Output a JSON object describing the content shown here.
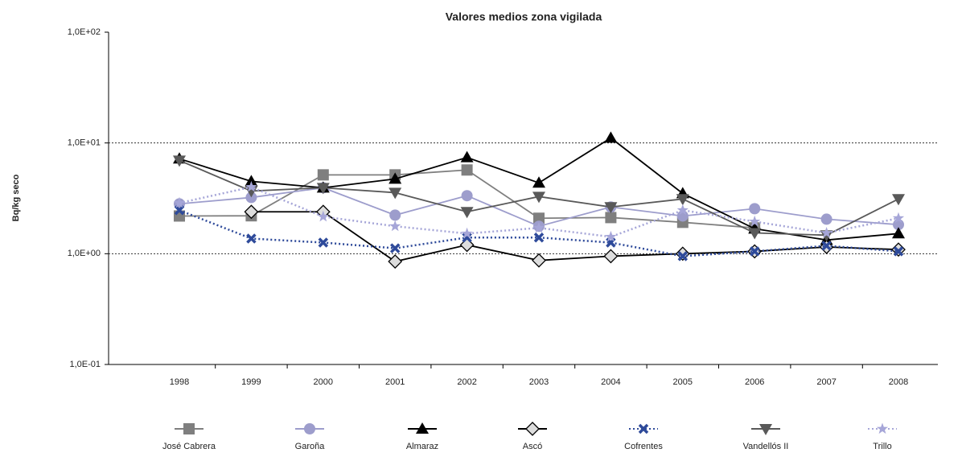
{
  "chart_data": {
    "type": "line",
    "title": "Valores medios zona vigilada",
    "y_label": "Bq/kg seco",
    "log_scale": true,
    "grid": true,
    "categories": [
      "1998",
      "1999",
      "2000",
      "2001",
      "2002",
      "2003",
      "2004",
      "2005",
      "2006",
      "2007",
      "2008"
    ],
    "ylim": [
      0.1,
      100
    ],
    "yticks": [
      {
        "value": 0.1,
        "label": "1,0E-01"
      },
      {
        "value": 1,
        "label": "1,0E+00"
      },
      {
        "value": 10,
        "label": "1,0E+01"
      },
      {
        "value": 100,
        "label": "1,0E+02"
      }
    ],
    "series": [
      {
        "name": "José Cabrera",
        "color": "#7f7f7f",
        "marker": "square",
        "dash": "solid",
        "values": [
          2.19,
          2.2,
          5.15,
          5.15,
          5.7,
          2.09,
          2.12,
          1.92,
          1.71,
          null,
          null
        ]
      },
      {
        "name": "Garoña",
        "color": "#9d9dcc",
        "marker": "circle",
        "dash": "solid",
        "values": [
          2.82,
          3.22,
          3.94,
          2.23,
          3.34,
          1.77,
          2.64,
          2.19,
          2.55,
          2.05,
          1.83
        ]
      },
      {
        "name": "Almaraz",
        "color": "#000000",
        "marker": "triangle",
        "dash": "solid",
        "values": [
          7.2,
          4.5,
          3.94,
          4.73,
          7.4,
          4.36,
          11.1,
          3.5,
          1.68,
          1.33,
          1.52
        ]
      },
      {
        "name": "Ascó",
        "color": "#000000",
        "marker": "diamond",
        "dash": "solid",
        "values": [
          null,
          2.39,
          2.39,
          0.85,
          1.2,
          0.87,
          0.95,
          1.0,
          1.05,
          1.15,
          1.09
        ]
      },
      {
        "name": "Cofrentes",
        "color": "#2e4a9a",
        "marker": "x",
        "dash": "dotted",
        "values": [
          2.47,
          1.37,
          1.26,
          1.12,
          1.4,
          1.4,
          1.26,
          0.95,
          1.05,
          1.18,
          1.05
        ]
      },
      {
        "name": "Vandellós II",
        "color": "#595959",
        "marker": "triangle-down",
        "dash": "solid",
        "values": [
          6.95,
          3.68,
          3.94,
          3.56,
          2.39,
          3.28,
          2.64,
          3.12,
          1.54,
          1.47,
          3.12
        ]
      },
      {
        "name": "Trillo",
        "color": "#a6a6d8",
        "marker": "star",
        "dash": "dotted",
        "values": [
          2.87,
          4.0,
          2.16,
          1.77,
          1.52,
          1.71,
          1.42,
          2.47,
          1.95,
          1.54,
          2.09
        ]
      }
    ]
  }
}
